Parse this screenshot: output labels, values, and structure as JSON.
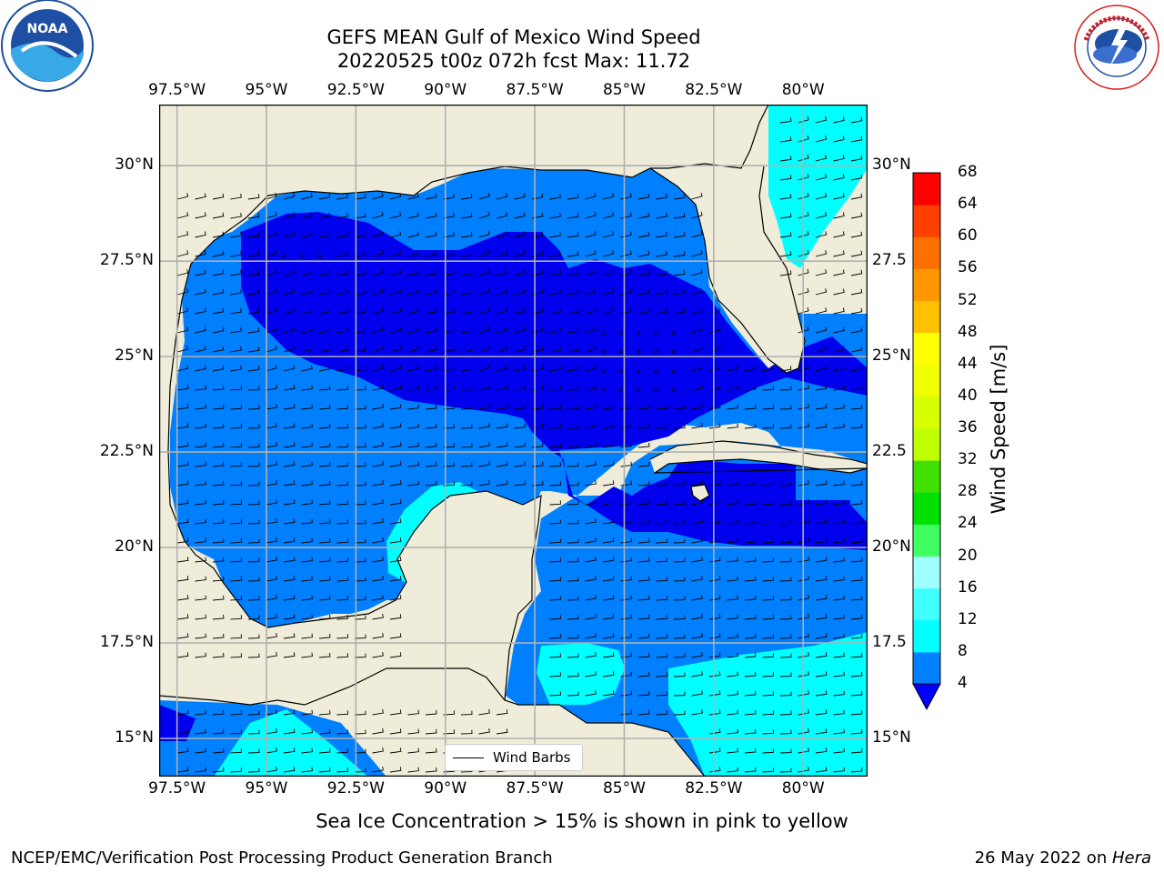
{
  "header": {
    "title_line1": "GEFS MEAN Gulf of Mexico Wind Speed",
    "title_line2": "20220525 t00z 072h fcst   Max: 11.72"
  },
  "logos": {
    "left": {
      "icon": "noaa-logo",
      "text": "NOAA",
      "ring_text": "NATIONAL OCEANIC AND ATMOSPHERIC ADMINISTRATION · U.S. DEPARTMENT OF COMMERCE"
    },
    "right": {
      "icon": "nws-logo",
      "ring_text": "NATIONAL WEATHER SERVICE"
    }
  },
  "map": {
    "lon_labels": [
      "97.5°W",
      "95°W",
      "92.5°W",
      "90°W",
      "87.5°W",
      "85°W",
      "82.5°W",
      "80°W"
    ],
    "lat_labels_left": [
      "30°N",
      "27.5°N",
      "25°N",
      "22.5°N",
      "20°N",
      "17.5°N",
      "15°N"
    ],
    "lat_labels_right": [
      "30°N",
      "27.5",
      "25°N",
      "22.5",
      "20°N",
      "17.5",
      "15°N"
    ],
    "lon_range": [
      -98,
      -78.2
    ],
    "lat_range": [
      14,
      31.6
    ],
    "legend_label": "Wind Barbs",
    "colors": {
      "land": "#efedda",
      "water_4": "#0080ff",
      "water_0": "#0000ee",
      "water_8": "#00ffff",
      "grid": "#b0b0b0"
    }
  },
  "colorbar": {
    "label": "Wind Speed [m/s]",
    "ticks": [
      "68",
      "64",
      "60",
      "56",
      "52",
      "48",
      "44",
      "40",
      "36",
      "32",
      "28",
      "24",
      "20",
      "16",
      "12",
      "8",
      "4"
    ],
    "bands": [
      {
        "lo": 4,
        "hi": 8,
        "color": "#0080ff"
      },
      {
        "lo": 8,
        "hi": 12,
        "color": "#00ffff"
      },
      {
        "lo": 12,
        "hi": 16,
        "color": "#40ffff"
      },
      {
        "lo": 16,
        "hi": 20,
        "color": "#a0ffff"
      },
      {
        "lo": 20,
        "hi": 24,
        "color": "#40ff60"
      },
      {
        "lo": 24,
        "hi": 28,
        "color": "#00e000"
      },
      {
        "lo": 28,
        "hi": 32,
        "color": "#40e000"
      },
      {
        "lo": 32,
        "hi": 36,
        "color": "#c0ff00"
      },
      {
        "lo": 36,
        "hi": 40,
        "color": "#d8ff00"
      },
      {
        "lo": 40,
        "hi": 44,
        "color": "#f0ff00"
      },
      {
        "lo": 44,
        "hi": 48,
        "color": "#ffff00"
      },
      {
        "lo": 48,
        "hi": 52,
        "color": "#ffc000"
      },
      {
        "lo": 52,
        "hi": 56,
        "color": "#ff9800"
      },
      {
        "lo": 56,
        "hi": 60,
        "color": "#ff7000"
      },
      {
        "lo": 60,
        "hi": 64,
        "color": "#ff4000"
      },
      {
        "lo": 64,
        "hi": 68,
        "color": "#ff0000"
      }
    ],
    "extend_color": "#0000ff"
  },
  "caption": "Sea Ice Concentration > 15% is shown in pink to yellow",
  "footer": {
    "left": "NCEP/EMC/Verification Post Processing Product Generation Branch",
    "right_prefix": "26 May 2022 on ",
    "right_machine": "Hera"
  }
}
